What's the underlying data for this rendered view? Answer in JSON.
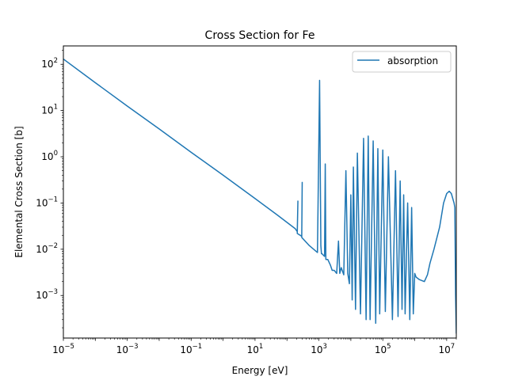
{
  "chart_data": {
    "type": "line",
    "title": "Cross Section for Fe",
    "xlabel": "Energy [eV]",
    "ylabel": "Elemental Cross Section [b]",
    "xscale": "log",
    "yscale": "log",
    "xlim": [
      1e-05,
      20000000
    ],
    "ylim": [
      0.00012,
      250
    ],
    "grid": false,
    "legend": {
      "position": "top-right",
      "entries": [
        "absorption"
      ]
    },
    "x_ticks": [
      {
        "value": 1e-05,
        "base": "10",
        "exp": "−5"
      },
      {
        "value": 0.001,
        "base": "10",
        "exp": "−3"
      },
      {
        "value": 0.1,
        "base": "10",
        "exp": "−1"
      },
      {
        "value": 10,
        "base": "10",
        "exp": "1"
      },
      {
        "value": 1000,
        "base": "10",
        "exp": "3"
      },
      {
        "value": 100000,
        "base": "10",
        "exp": "5"
      },
      {
        "value": 10000000,
        "base": "10",
        "exp": "7"
      }
    ],
    "y_ticks": [
      {
        "value": 0.001,
        "base": "10",
        "exp": "−3"
      },
      {
        "value": 0.01,
        "base": "10",
        "exp": "−2"
      },
      {
        "value": 0.1,
        "base": "10",
        "exp": "−1"
      },
      {
        "value": 1,
        "base": "10",
        "exp": "0"
      },
      {
        "value": 10,
        "base": "10",
        "exp": "1"
      },
      {
        "value": 100,
        "base": "10",
        "exp": "2"
      }
    ],
    "series": [
      {
        "name": "absorption",
        "color": "#1f77b4",
        "x": [
          1e-05,
          0.0001,
          0.001,
          0.01,
          0.1,
          1,
          10,
          50,
          180,
          210,
          220,
          210,
          260,
          290,
          300,
          290,
          500,
          900,
          1050,
          1150,
          1200,
          1250,
          1500,
          1580,
          1650,
          1900,
          2300,
          2600,
          3000,
          3600,
          4100,
          4500,
          5000,
          6000,
          7000,
          8000,
          9000,
          10000,
          11000,
          12000,
          14000,
          16000,
          20000,
          25000,
          30000,
          35000,
          40000,
          50000,
          60000,
          70000,
          80000,
          100000,
          120000,
          150000,
          200000,
          250000,
          300000,
          350000,
          400000,
          450000,
          500000,
          600000,
          700000,
          800000,
          900000,
          1000000,
          1100000,
          1400000,
          2000000,
          2500000,
          3000000,
          4000000,
          6000000,
          8000000,
          10000000,
          12000000,
          14000000,
          17000000,
          18000000,
          19000000,
          20000000
        ],
        "y": [
          130,
          40,
          12.5,
          4,
          1.25,
          0.4,
          0.125,
          0.055,
          0.028,
          0.024,
          0.11,
          0.022,
          0.02,
          0.019,
          0.28,
          0.018,
          0.012,
          0.0085,
          45,
          0.012,
          0.008,
          0.008,
          0.007,
          0.7,
          0.006,
          0.006,
          0.0045,
          0.0035,
          0.0035,
          0.003,
          0.015,
          0.003,
          0.004,
          0.0028,
          0.5,
          0.003,
          0.0018,
          0.15,
          0.0008,
          0.6,
          0.0005,
          1.2,
          0.0004,
          2.5,
          0.0003,
          2.8,
          0.0003,
          2.2,
          0.00025,
          1.5,
          0.0004,
          1.4,
          0.00045,
          1.0,
          0.0003,
          0.5,
          0.00035,
          0.3,
          0.0005,
          0.15,
          0.0004,
          0.1,
          0.0003,
          0.08,
          0.0004,
          0.003,
          0.0025,
          0.0022,
          0.002,
          0.0028,
          0.005,
          0.01,
          0.03,
          0.1,
          0.16,
          0.18,
          0.16,
          0.1,
          0.08,
          0.001,
          0.00015
        ]
      }
    ]
  }
}
